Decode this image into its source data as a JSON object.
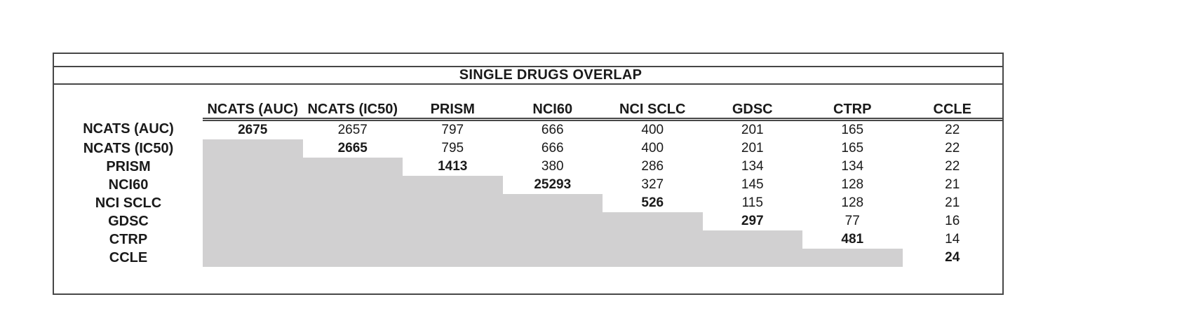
{
  "colors": {
    "frame_border": "#474747",
    "shaded_cell": "#d1d0d1",
    "text": "#1a1a1a",
    "background": "#ffffff"
  },
  "chart_data": {
    "type": "table",
    "title": "SINGLE DRUGS OVERLAP",
    "description_visual": "Pairwise overlap matrix; lower triangle shaded gray, diagonal values bold",
    "col_labels": [
      "NCATS (AUC)",
      "NCATS (IC50)",
      "PRISM",
      "NCI60",
      "NCI SCLC",
      "GDSC",
      "CTRP",
      "CCLE"
    ],
    "row_labels": [
      "NCATS (AUC)",
      "NCATS (IC50)",
      "PRISM",
      "NCI60",
      "NCI SCLC",
      "GDSC",
      "CTRP",
      "CCLE"
    ],
    "matrix": [
      [
        2675,
        2657,
        797,
        666,
        400,
        201,
        165,
        22
      ],
      [
        null,
        2665,
        795,
        666,
        400,
        201,
        165,
        22
      ],
      [
        null,
        null,
        1413,
        380,
        286,
        134,
        134,
        22
      ],
      [
        null,
        null,
        null,
        25293,
        327,
        145,
        128,
        21
      ],
      [
        null,
        null,
        null,
        null,
        526,
        115,
        128,
        21
      ],
      [
        null,
        null,
        null,
        null,
        null,
        297,
        77,
        16
      ],
      [
        null,
        null,
        null,
        null,
        null,
        null,
        481,
        14
      ],
      [
        null,
        null,
        null,
        null,
        null,
        null,
        null,
        24
      ]
    ],
    "diagonal_bold": true,
    "lower_triangle_shaded": true
  }
}
